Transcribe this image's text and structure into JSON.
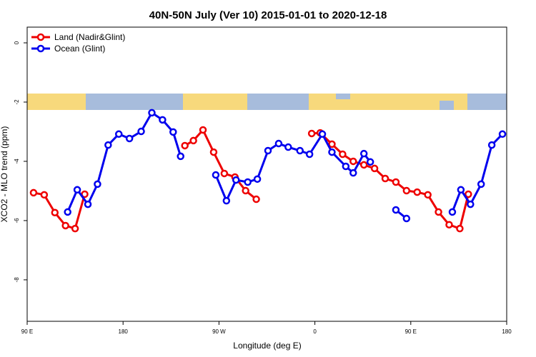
{
  "chart_data": {
    "type": "line",
    "title": "40N-50N July (Ver 10)   2015-01-01 to 2020-12-18",
    "xlabel": "Longitude (deg E)",
    "ylabel": "XCO2 - MLO trend (ppm)",
    "xlim": [
      90,
      540
    ],
    "ylim": [
      -9.4,
      0.53
    ],
    "xticks": [
      {
        "value": 90,
        "label": "90 E"
      },
      {
        "value": 180,
        "label": "180"
      },
      {
        "value": 270,
        "label": "90 W"
      },
      {
        "value": 360,
        "label": "0"
      },
      {
        "value": 450,
        "label": "90 E"
      },
      {
        "value": 540,
        "label": "180"
      }
    ],
    "yticks": [
      -8,
      -6,
      -4,
      -2,
      0
    ],
    "legend": "top-left",
    "series": [
      {
        "name": "Land (Nadir&Glint)",
        "color": "#ee0000",
        "x": [
          96,
          106,
          116,
          126,
          135,
          144,
          190,
          238,
          246,
          255,
          265,
          275,
          285,
          295,
          305,
          330,
          357,
          365,
          376,
          386,
          396,
          406,
          416,
          426,
          436,
          446,
          456,
          466,
          476,
          486,
          496,
          504
        ],
        "values": [
          -5.06,
          -5.13,
          -5.73,
          -6.17,
          -6.27,
          -5.11,
          null,
          -3.47,
          -3.3,
          -2.94,
          -3.69,
          -4.41,
          -4.53,
          -4.99,
          -5.28,
          null,
          -3.06,
          -3.04,
          -3.42,
          -3.76,
          -4.0,
          -4.12,
          -4.24,
          -4.58,
          -4.7,
          -4.99,
          -5.04,
          -5.13,
          -5.71,
          -6.14,
          -6.27,
          -5.11
        ]
      },
      {
        "name": "Ocean (Glint)",
        "color": "#0000ee",
        "x": [
          128,
          137,
          147,
          156,
          166,
          176,
          186,
          197,
          207,
          217,
          227,
          234,
          250,
          267,
          277,
          286,
          297,
          306,
          316,
          326,
          335,
          346,
          355,
          367,
          376,
          389,
          396,
          406,
          412,
          425,
          436,
          446,
          470,
          489,
          497,
          506,
          516,
          526,
          536
        ],
        "values": [
          -5.71,
          -4.96,
          -5.45,
          -4.77,
          -3.45,
          -3.08,
          -3.23,
          -2.99,
          -2.36,
          -2.6,
          -3.01,
          -3.83,
          null,
          -4.46,
          -5.33,
          -4.63,
          -4.7,
          -4.6,
          -3.64,
          -3.4,
          -3.52,
          -3.64,
          -3.76,
          -3.08,
          -3.69,
          -4.17,
          -4.39,
          -3.74,
          -4.02,
          null,
          -5.64,
          -5.93,
          null,
          -5.71,
          -4.96,
          -5.45,
          -4.77,
          -3.45,
          -3.08
        ]
      }
    ]
  }
}
